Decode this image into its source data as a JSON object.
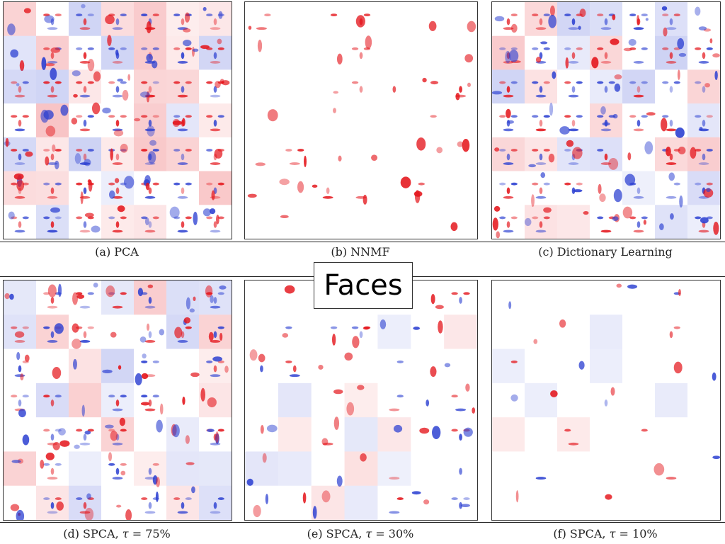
{
  "title": "Faces",
  "colors": {
    "positive": "#e4141a",
    "negative": "#2b3fd1",
    "background": "#ffffff"
  },
  "grid": {
    "rows": 7,
    "cols": 7
  },
  "panels": [
    {
      "id": "a",
      "caption": "(a) PCA",
      "density": 0.95,
      "method": "PCA"
    },
    {
      "id": "b",
      "caption": "(b) NNMF",
      "density": 0.25,
      "method": "NNMF"
    },
    {
      "id": "c",
      "caption": "(c) Dictionary Learning",
      "density": 0.85,
      "method": "Dictionary Learning"
    },
    {
      "id": "d",
      "caption_prefix": "(d) SPCA, ",
      "tau_symbol": "τ",
      "caption_suffix": " = 75%",
      "density": 0.75,
      "method": "SPCA"
    },
    {
      "id": "e",
      "caption_prefix": "(e) SPCA, ",
      "tau_symbol": "τ",
      "caption_suffix": " = 30%",
      "density": 0.35,
      "method": "SPCA"
    },
    {
      "id": "f",
      "caption_prefix": "(f) SPCA, ",
      "tau_symbol": "τ",
      "caption_suffix": " = 10%",
      "density": 0.12,
      "method": "SPCA"
    }
  ]
}
